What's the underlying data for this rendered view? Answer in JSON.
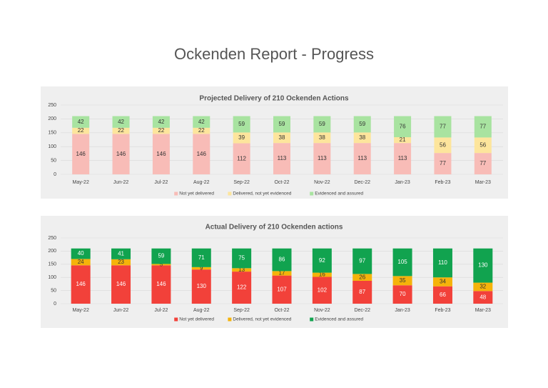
{
  "title": "Ockenden Report - Progress",
  "chart_data": [
    {
      "type": "stacked_bar",
      "title": "Projected Delivery of 210 Ockenden Actions",
      "categories": [
        "May-22",
        "Jun-22",
        "Jul-22",
        "Aug-22",
        "Sep-22",
        "Oct-22",
        "Nov-22",
        "Dec-22",
        "Jan-23",
        "Feb-23",
        "Mar-23"
      ],
      "series": [
        {
          "name": "Not yet delivered",
          "color": "#f8bcb7",
          "label_color": "#333333",
          "values": [
            146,
            146,
            146,
            146,
            112,
            113,
            113,
            113,
            113,
            77,
            77
          ]
        },
        {
          "name": "Delivered, not yet evidenced",
          "color": "#fde59c",
          "label_color": "#333333",
          "values": [
            22,
            22,
            22,
            22,
            39,
            38,
            38,
            38,
            21,
            56,
            56
          ]
        },
        {
          "name": "Evidenced and assured",
          "color": "#a8e3a0",
          "label_color": "#333333",
          "values": [
            42,
            42,
            42,
            42,
            59,
            59,
            59,
            59,
            76,
            77,
            77
          ]
        }
      ],
      "ylim": [
        0,
        250
      ],
      "yticks": [
        0,
        50,
        100,
        150,
        200,
        250
      ],
      "grid": true,
      "legend": "bottom"
    },
    {
      "type": "stacked_bar",
      "title": "Actual Delivery of 210 Ockenden actions",
      "categories": [
        "May-22",
        "Jun-22",
        "Jul-22",
        "Aug-22",
        "Sep-22",
        "Oct-22",
        "Nov-22",
        "Dec-22",
        "Jan-23",
        "Feb-23",
        "Mar-23"
      ],
      "series": [
        {
          "name": "Not yet delivered",
          "color": "#f2413a",
          "label_color": "#ffffff",
          "values": [
            146,
            146,
            146,
            130,
            122,
            107,
            102,
            87,
            70,
            66,
            48
          ]
        },
        {
          "name": "Delivered, not yet evidenced",
          "color": "#f5b30a",
          "label_color": "#333333",
          "values": [
            24,
            23,
            5,
            9,
            13,
            17,
            16,
            26,
            35,
            34,
            32
          ]
        },
        {
          "name": "Evidenced and assured",
          "color": "#11a34f",
          "label_color": "#ffffff",
          "values": [
            40,
            41,
            59,
            71,
            75,
            86,
            92,
            97,
            105,
            110,
            130
          ]
        }
      ],
      "ylim": [
        0,
        250
      ],
      "yticks": [
        0,
        50,
        100,
        150,
        200,
        250
      ],
      "grid": true,
      "legend": "bottom"
    }
  ]
}
